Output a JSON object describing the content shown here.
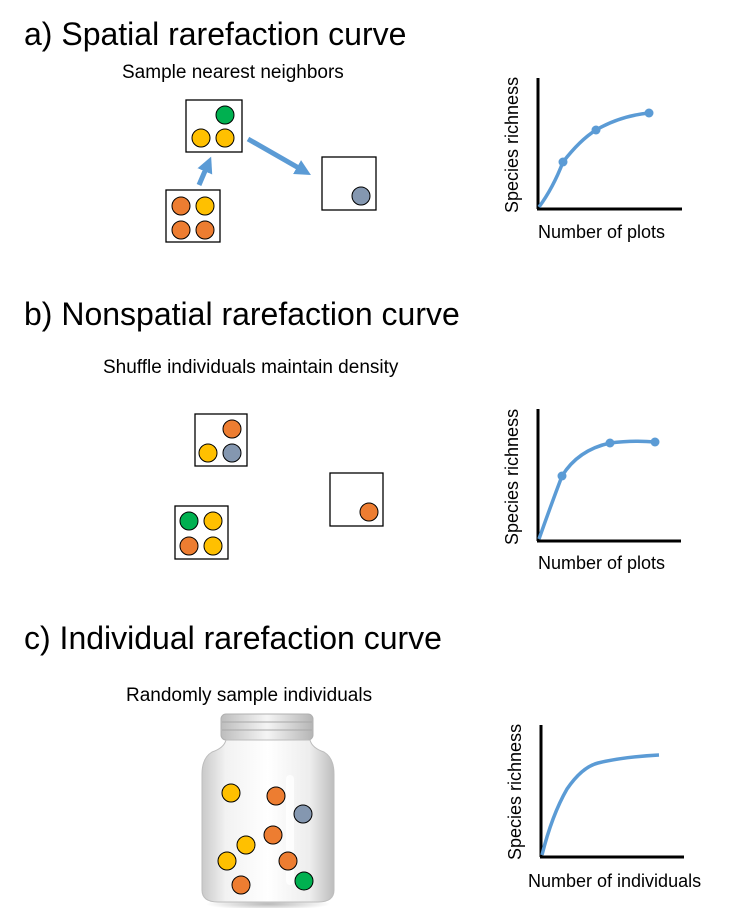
{
  "colors": {
    "yellow": "#FFC000",
    "orange": "#ED7D31",
    "green": "#00B050",
    "gray": "#8497B0",
    "curve": "#5B9BD5",
    "arrow": "#5B9BD5"
  },
  "panels": [
    {
      "id": "a",
      "heading": "a) Spatial rarefaction curve",
      "subtitle": "Sample nearest neighbors",
      "plots": [
        {
          "circles": [
            "green",
            "yellow",
            "yellow"
          ]
        },
        {
          "circles": [
            "gray"
          ]
        },
        {
          "circles": [
            "orange",
            "yellow",
            "orange",
            "orange"
          ]
        }
      ],
      "graph": {
        "ylabel": "Species richness",
        "xlabel": "Number of plots",
        "points": 3
      }
    },
    {
      "id": "b",
      "heading": "b) Nonspatial rarefaction curve",
      "subtitle": "Shuffle individuals maintain density",
      "plots": [
        {
          "circles": [
            "orange",
            "yellow",
            "gray"
          ]
        },
        {
          "circles": [
            "orange"
          ]
        },
        {
          "circles": [
            "green",
            "yellow",
            "orange",
            "yellow"
          ]
        }
      ],
      "graph": {
        "ylabel": "Species richness",
        "xlabel": "Number of plots",
        "points": 3
      }
    },
    {
      "id": "c",
      "heading": "c) Individual rarefaction curve",
      "subtitle": "Randomly sample individuals",
      "jar": {
        "circles": [
          "yellow",
          "orange",
          "gray",
          "yellow",
          "orange",
          "yellow",
          "orange",
          "yellow",
          "orange",
          "green"
        ]
      },
      "graph": {
        "ylabel": "Species richness",
        "xlabel": "Number of individuals",
        "points": 0
      }
    }
  ]
}
